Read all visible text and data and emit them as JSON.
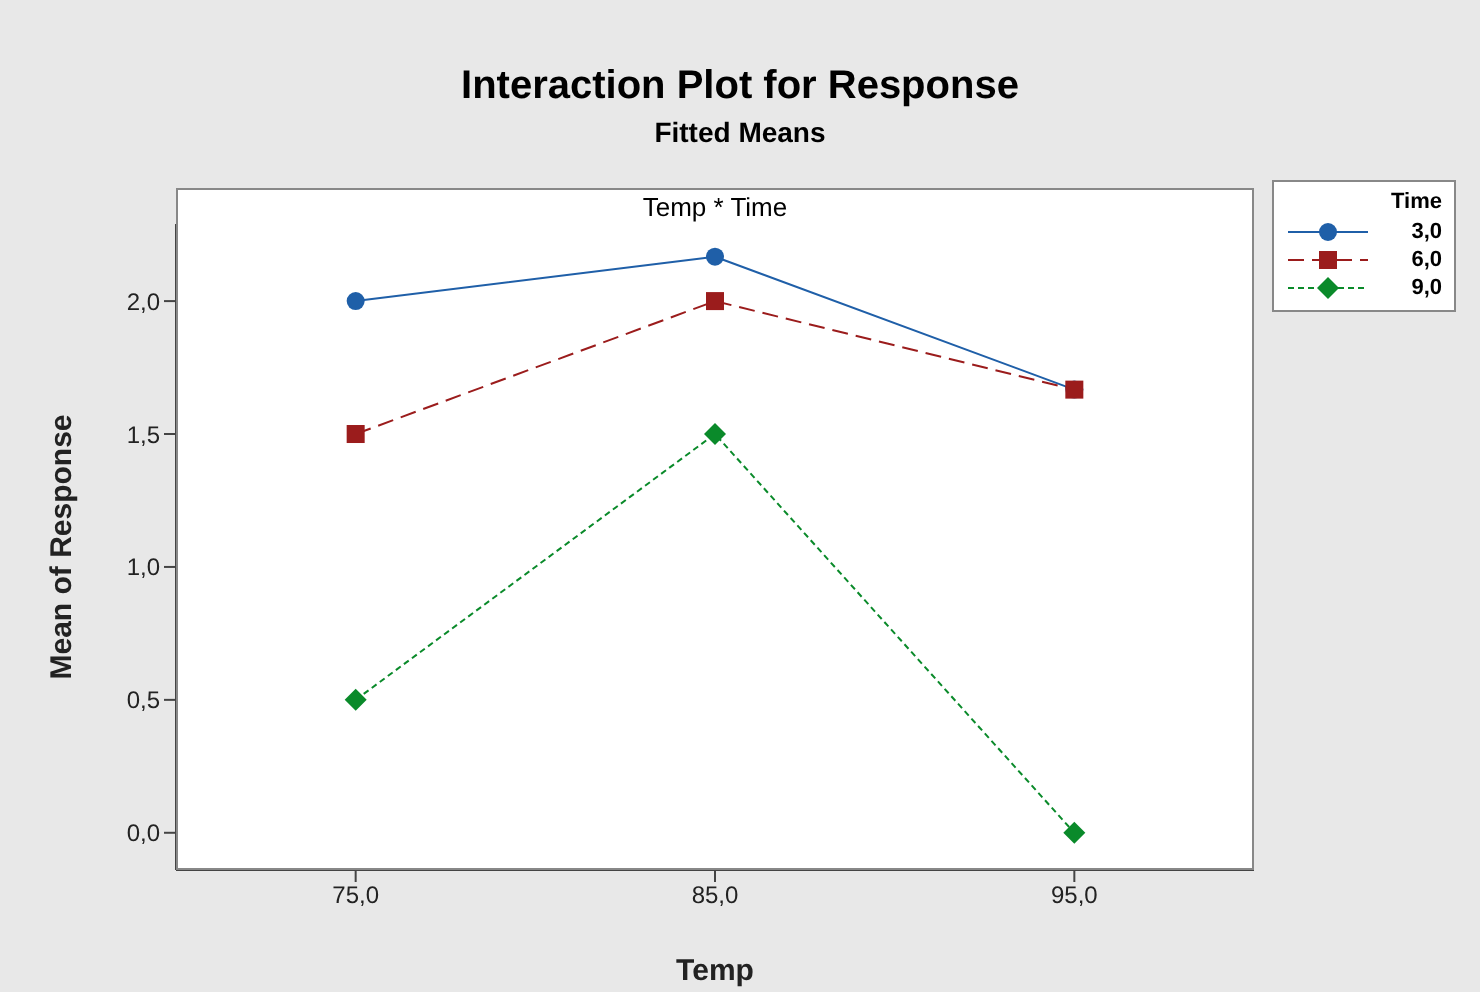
{
  "chart_data": {
    "type": "line",
    "title": "Interaction Plot for Response",
    "subtitle": "Fitted Means",
    "annotations": [
      "Temp * Time"
    ],
    "xlabel": "Temp",
    "ylabel": "Mean of Response",
    "legend_title": "Time",
    "legend": "top right",
    "grid": false,
    "categories": [
      "75,0",
      "85,0",
      "95,0"
    ],
    "ylim": [
      -0.14,
      2.29
    ],
    "yticks": [
      {
        "value": 0,
        "label": "0,0"
      },
      {
        "value": 0.5,
        "label": "0,5"
      },
      {
        "value": 1,
        "label": "1,0"
      },
      {
        "value": 1.5,
        "label": "1,5"
      },
      {
        "value": 2,
        "label": "2,0"
      }
    ],
    "series": [
      {
        "name": "3,0",
        "color": "#1f5fa8",
        "values": [
          2.0,
          2.167,
          1.667
        ],
        "marker": "circle",
        "line_style": "solid"
      },
      {
        "name": "6,0",
        "color": "#9b1c1c",
        "values": [
          1.5,
          2.0,
          1.667
        ],
        "marker": "square",
        "line_style": "dashed"
      },
      {
        "name": "9,0",
        "color": "#0a8a2a",
        "values": [
          0.5,
          1.5,
          0.0
        ],
        "marker": "diamond",
        "line_style": "dotted"
      }
    ]
  }
}
